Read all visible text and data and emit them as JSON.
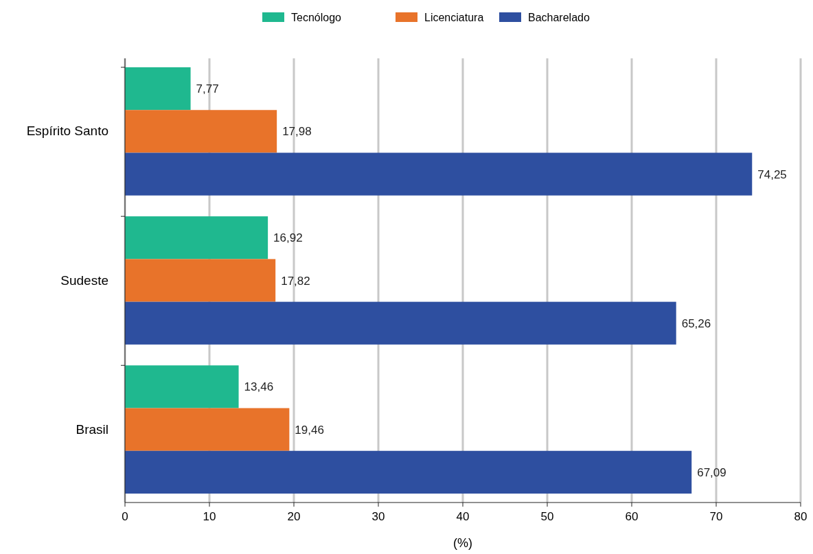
{
  "chart_data": {
    "type": "bar",
    "orientation": "horizontal",
    "categories": [
      "Espírito Santo",
      "Sudeste",
      "Brasil"
    ],
    "series": [
      {
        "name": "Tecnólogo",
        "color": "#1fb88f",
        "values": [
          7.77,
          16.92,
          13.46
        ],
        "value_labels": [
          "7,77",
          "16,92",
          "13,46"
        ]
      },
      {
        "name": "Licenciatura",
        "color": "#e8732a",
        "values": [
          17.98,
          17.82,
          19.46
        ],
        "value_labels": [
          "17,98",
          "17,82",
          "19,46"
        ]
      },
      {
        "name": "Bacharelado",
        "color": "#2e4fa0",
        "values": [
          74.25,
          65.26,
          67.09
        ],
        "value_labels": [
          "74,25",
          "65,26",
          "67,09"
        ]
      }
    ],
    "xlim": [
      0,
      80
    ],
    "xticks": [
      0,
      10,
      20,
      30,
      40,
      50,
      60,
      70,
      80
    ],
    "xlabel": "(%)",
    "grid": "x",
    "legend": "top"
  }
}
